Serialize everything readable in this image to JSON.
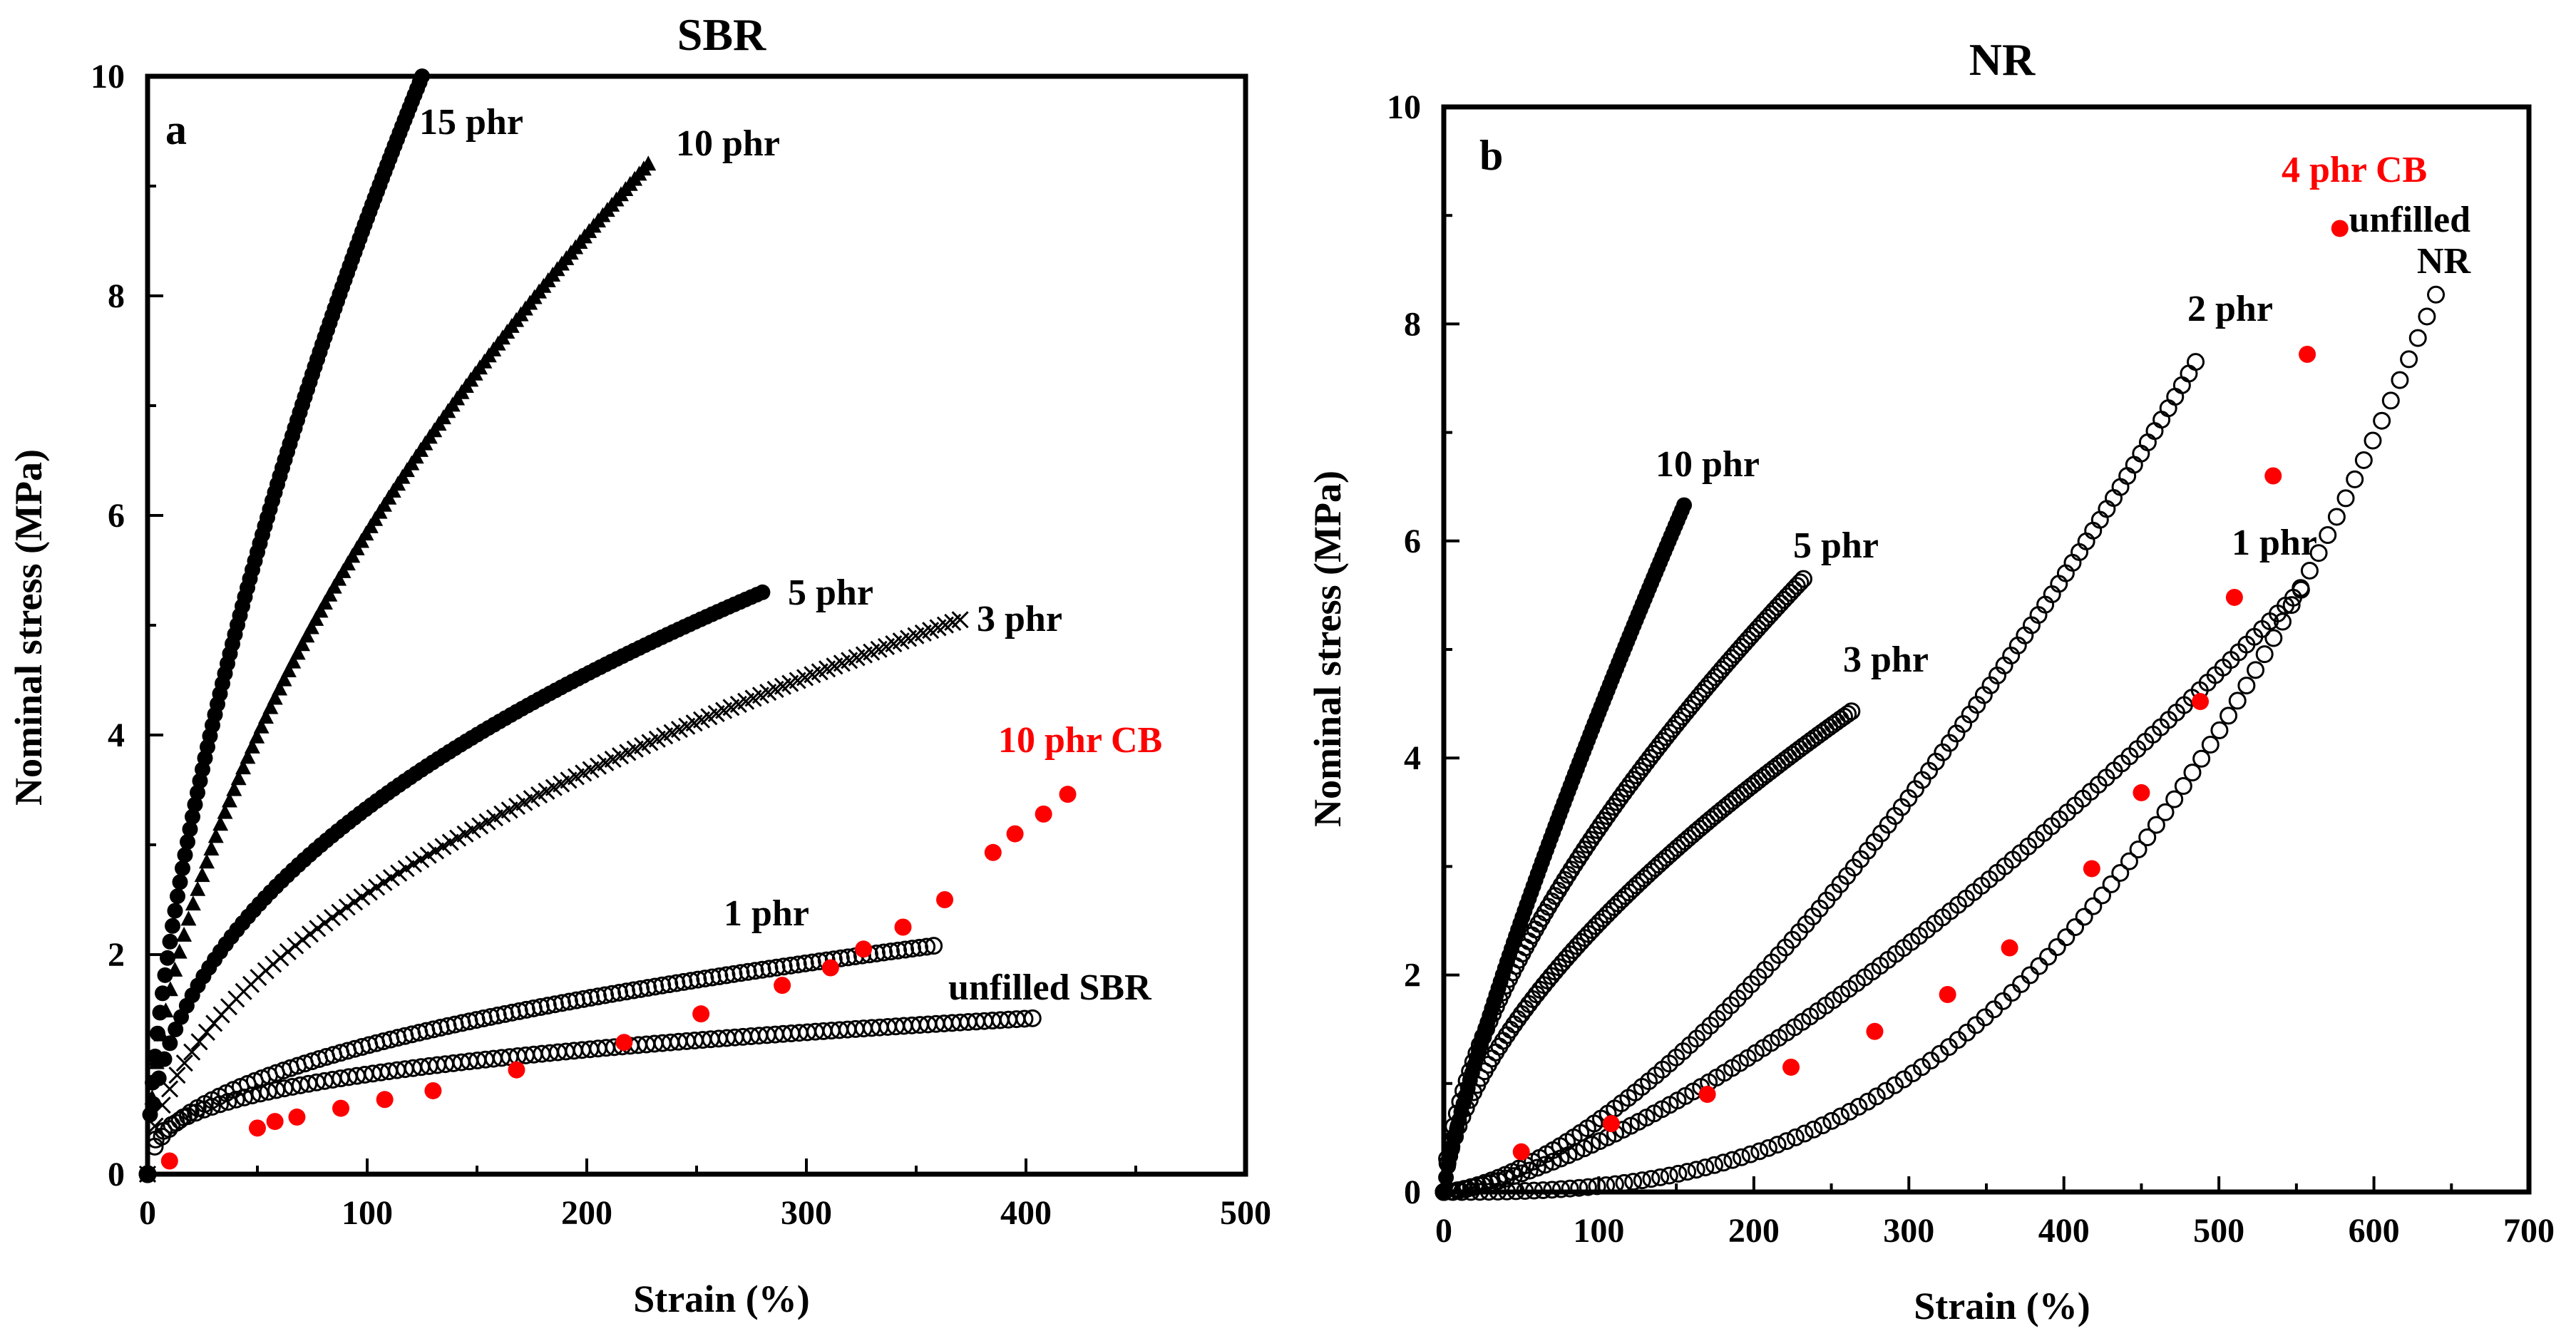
{
  "figure": {
    "panels": [
      {
        "id": "a",
        "chart_data": {
          "type": "scatter",
          "title": "SBR",
          "panel_label": "a",
          "xlabel": "Strain (%)",
          "ylabel": "Nominal stress (MPa)",
          "xlim": [
            0,
            500
          ],
          "ylim": [
            0,
            10
          ],
          "xticks": [
            "0",
            "100",
            "200",
            "300",
            "400",
            "500"
          ],
          "yticks": [
            "0",
            "2",
            "4",
            "6",
            "8",
            "10"
          ],
          "series": [
            {
              "name": "15 phr",
              "label": "15 phr",
              "marker": "filled-circle",
              "color": "#000000",
              "curve": {
                "end_x": 125,
                "end_y": 10.0,
                "k": 0.62
              }
            },
            {
              "name": "10 phr",
              "label": "10 phr",
              "marker": "filled-triangle",
              "color": "#000000",
              "curve": {
                "end_x": 228,
                "end_y": 9.2,
                "k": 0.55
              }
            },
            {
              "name": "5 phr",
              "label": "5 phr",
              "marker": "filled-circle",
              "color": "#000000",
              "curve": {
                "end_x": 280,
                "end_y": 5.3,
                "k": 0.45
              }
            },
            {
              "name": "3 phr",
              "label": "3 phr",
              "marker": "cross",
              "color": "#000000",
              "curve": {
                "end_x": 370,
                "end_y": 5.05,
                "k": 0.52
              }
            },
            {
              "name": "1 phr",
              "label": "1 phr",
              "marker": "open-circle",
              "color": "#000000",
              "curve": {
                "end_x": 358,
                "end_y": 2.08,
                "k": 0.45
              }
            },
            {
              "name": "unfilled SBR",
              "label": "unfilled SBR",
              "marker": "open-circle",
              "color": "#000000",
              "curve": {
                "end_x": 403,
                "end_y": 1.42,
                "k": 0.32
              }
            },
            {
              "name": "10 phr CB",
              "label": "10 phr CB",
              "marker": "filled-circle",
              "color": "#ff0000",
              "points": [
                [
                  10,
                  0.12
                ],
                [
                  50,
                  0.42
                ],
                [
                  58,
                  0.48
                ],
                [
                  68,
                  0.52
                ],
                [
                  88,
                  0.6
                ],
                [
                  108,
                  0.68
                ],
                [
                  130,
                  0.76
                ],
                [
                  168,
                  0.95
                ],
                [
                  217,
                  1.2
                ],
                [
                  252,
                  1.46
                ],
                [
                  289,
                  1.72
                ],
                [
                  311,
                  1.88
                ],
                [
                  326,
                  2.05
                ],
                [
                  344,
                  2.25
                ],
                [
                  363,
                  2.5
                ],
                [
                  385,
                  2.93
                ],
                [
                  395,
                  3.1
                ],
                [
                  408,
                  3.28
                ],
                [
                  419,
                  3.46
                ]
              ]
            }
          ]
        }
      },
      {
        "id": "b",
        "chart_data": {
          "type": "scatter",
          "title": "NR",
          "panel_label": "b",
          "xlabel": "Strain (%)",
          "ylabel": "Nominal stress (MPa)",
          "xlim": [
            0,
            700
          ],
          "ylim": [
            0,
            10
          ],
          "xticks": [
            "0",
            "100",
            "200",
            "300",
            "400",
            "500",
            "600",
            "700"
          ],
          "yticks": [
            "0",
            "2",
            "4",
            "6",
            "8",
            "10"
          ],
          "series": [
            {
              "name": "10 phr",
              "label": "10 phr",
              "marker": "filled-circle",
              "color": "#000000",
              "curve": {
                "end_x": 155,
                "end_y": 6.33,
                "k": 0.82
              }
            },
            {
              "name": "5 phr",
              "label": "5 phr",
              "marker": "open-circle",
              "color": "#000000",
              "curve": {
                "end_x": 232,
                "end_y": 5.65,
                "k": 0.62
              }
            },
            {
              "name": "3 phr",
              "label": "3 phr",
              "marker": "open-circle",
              "color": "#000000",
              "curve": {
                "end_x": 263,
                "end_y": 4.43,
                "k": 0.6
              }
            },
            {
              "name": "2 phr",
              "label": "2 phr",
              "marker": "open-circle",
              "color": "#000000",
              "curve": {
                "end_x": 485,
                "end_y": 7.65,
                "k": 1.55
              }
            },
            {
              "name": "1 phr",
              "label": "1 phr",
              "marker": "open-circle",
              "color": "#000000",
              "curve": {
                "end_x": 553,
                "end_y": 5.55,
                "k": 1.45
              }
            },
            {
              "name": "unfilled NR",
              "label_lines": [
                "unfilled",
                "NR"
              ],
              "marker": "open-circle",
              "color": "#000000",
              "curve": {
                "end_x": 640,
                "end_y": 8.27,
                "k": 2.7
              }
            },
            {
              "name": "4 phr CB",
              "label": "4 phr CB",
              "marker": "filled-circle",
              "color": "#ff0000",
              "points": [
                [
                  50,
                  0.37
                ],
                [
                  108,
                  0.63
                ],
                [
                  170,
                  0.9
                ],
                [
                  224,
                  1.15
                ],
                [
                  278,
                  1.48
                ],
                [
                  325,
                  1.82
                ],
                [
                  365,
                  2.25
                ],
                [
                  418,
                  2.98
                ],
                [
                  450,
                  3.68
                ],
                [
                  488,
                  4.52
                ],
                [
                  510,
                  5.48
                ],
                [
                  535,
                  6.6
                ],
                [
                  557,
                  7.72
                ],
                [
                  578,
                  8.88
                ]
              ]
            }
          ]
        }
      }
    ]
  }
}
